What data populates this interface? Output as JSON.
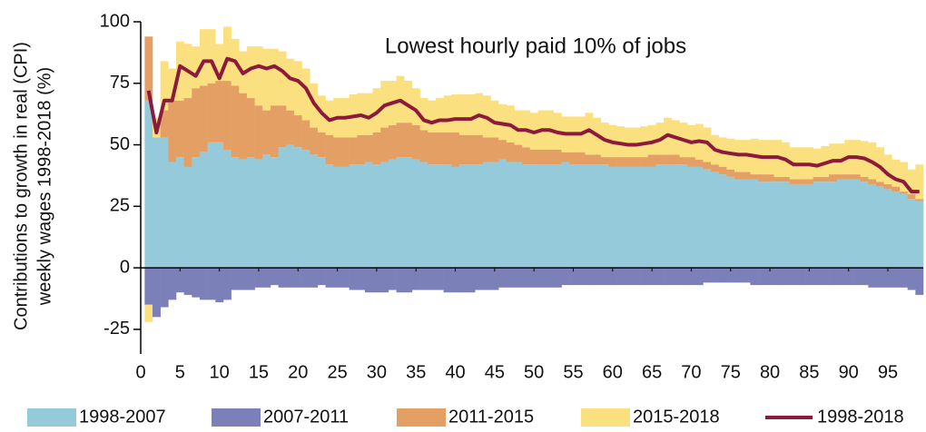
{
  "chart_data": {
    "type": "bar",
    "stacked": true,
    "annotation": "Lowest hourly paid 10% of jobs",
    "y_label": [
      "Contributions to growth in real (CPI)",
      "weekly wages 1998-2018 (%)"
    ],
    "x": [
      1,
      2,
      3,
      4,
      5,
      6,
      7,
      8,
      9,
      10,
      11,
      12,
      13,
      14,
      15,
      16,
      17,
      18,
      19,
      20,
      21,
      22,
      23,
      24,
      25,
      26,
      27,
      28,
      29,
      30,
      31,
      32,
      33,
      34,
      35,
      36,
      37,
      38,
      39,
      40,
      41,
      42,
      43,
      44,
      45,
      46,
      47,
      48,
      49,
      50,
      51,
      52,
      53,
      54,
      55,
      56,
      57,
      58,
      59,
      60,
      61,
      62,
      63,
      64,
      65,
      66,
      67,
      68,
      69,
      70,
      71,
      72,
      73,
      74,
      75,
      76,
      77,
      78,
      79,
      80,
      81,
      82,
      83,
      84,
      85,
      86,
      87,
      88,
      89,
      90,
      91,
      92,
      93,
      94,
      95,
      96,
      97,
      98,
      99
    ],
    "xlim": [
      0,
      99.5
    ],
    "xticks": [
      0,
      5,
      10,
      15,
      20,
      25,
      30,
      35,
      40,
      45,
      50,
      55,
      60,
      65,
      70,
      75,
      80,
      85,
      90,
      95
    ],
    "ylim": [
      -35,
      100
    ],
    "yticks": [
      -25,
      0,
      25,
      50,
      75,
      100
    ],
    "series": [
      {
        "name": "1998-2007",
        "color": "#94cad9",
        "values": [
          68,
          53,
          53,
          43,
          45,
          41,
          45,
          47,
          51,
          51,
          48,
          45,
          44,
          45,
          44,
          46,
          45,
          49,
          50,
          49,
          48,
          46,
          45,
          42,
          41,
          41,
          42,
          42,
          43,
          42,
          43,
          44,
          45,
          45,
          44,
          43,
          42,
          42,
          42,
          41,
          42,
          42,
          42,
          43,
          43,
          44,
          43,
          43,
          42,
          42,
          42,
          42,
          42,
          43,
          42,
          42,
          42,
          42,
          42,
          41,
          41,
          41,
          41,
          41,
          41,
          42,
          42,
          42,
          42,
          41,
          41,
          40,
          39,
          38,
          37,
          36,
          36,
          36,
          35,
          35,
          35,
          35,
          34,
          34,
          34,
          35,
          35,
          35,
          36,
          36,
          36,
          35,
          34,
          33,
          32,
          31,
          30,
          28,
          27
        ]
      },
      {
        "name": "2007-2011",
        "color": "#7c80b8",
        "values": [
          -15,
          -20,
          -16,
          -13,
          -10,
          -11,
          -12,
          -13,
          -13,
          -14,
          -13,
          -9,
          -9,
          -9,
          -8,
          -8,
          -7,
          -8,
          -8,
          -8,
          -8,
          -8,
          -7,
          -8,
          -8,
          -8,
          -9,
          -9,
          -10,
          -10,
          -10,
          -9,
          -10,
          -10,
          -9,
          -9,
          -9,
          -9,
          -10,
          -10,
          -10,
          -10,
          -9,
          -9,
          -9,
          -8,
          -8,
          -8,
          -8,
          -8,
          -8,
          -8,
          -8,
          -7,
          -7,
          -7,
          -7,
          -7,
          -7,
          -7,
          -7,
          -7,
          -7,
          -7,
          -7,
          -7,
          -7,
          -7,
          -7,
          -7,
          -7,
          -6,
          -6,
          -6,
          -6,
          -6,
          -6,
          -7,
          -7,
          -7,
          -7,
          -7,
          -7,
          -7,
          -7,
          -7,
          -7,
          -7,
          -7,
          -7,
          -7,
          -7,
          -8,
          -8,
          -8,
          -8,
          -8,
          -9,
          -11
        ]
      },
      {
        "name": "2011-2015",
        "color": "#e4a064",
        "values": [
          26,
          0,
          11,
          25,
          23,
          28,
          28,
          27,
          24,
          25,
          28,
          29,
          27,
          24,
          22,
          18,
          21,
          17,
          14,
          13,
          12,
          11,
          10,
          12,
          12,
          12,
          11,
          12,
          11,
          13,
          14,
          14,
          14,
          14,
          14,
          13,
          13,
          13,
          13,
          14,
          12,
          12,
          12,
          10,
          10,
          8,
          8,
          7,
          7,
          6,
          6,
          6,
          6,
          4,
          5,
          5,
          4,
          4,
          3,
          4,
          4,
          4,
          4,
          4,
          5,
          4,
          4,
          4,
          3,
          4,
          3,
          3,
          3,
          3,
          3,
          3,
          3,
          2,
          3,
          3,
          2,
          2,
          2,
          2,
          2,
          2,
          2,
          3,
          2,
          2,
          2,
          2,
          2,
          2,
          2,
          2,
          1,
          2,
          1
        ]
      },
      {
        "name": "2015-2018",
        "color": "#fbe07f",
        "values": [
          -7,
          8,
          20,
          13,
          24,
          22,
          17,
          23,
          22,
          15,
          22,
          19,
          17,
          21,
          24,
          25,
          23,
          22,
          21,
          22,
          21,
          18,
          15,
          14,
          16,
          16,
          17.5,
          17,
          17,
          18,
          19,
          18,
          19,
          17,
          15,
          13,
          13,
          14,
          15,
          15.5,
          16.5,
          16.5,
          17,
          17,
          15,
          14.5,
          15,
          14,
          15,
          15,
          16,
          16,
          15,
          14.5,
          14.5,
          14.5,
          17,
          15,
          14,
          13,
          12.5,
          12,
          12,
          12.5,
          12,
          13,
          15,
          14,
          14,
          13,
          14.5,
          14,
          12,
          12,
          12.5,
          13,
          13,
          14.5,
          14,
          14,
          15,
          14,
          13,
          13,
          13,
          11.5,
          12.5,
          12.5,
          12.5,
          14,
          14,
          14.5,
          15,
          14,
          12,
          11,
          12,
          10,
          14
        ]
      },
      {
        "name": "1998-2018",
        "color": "#8b1a3c",
        "type": "line",
        "values": [
          72,
          55,
          68,
          68,
          82,
          80,
          78,
          84,
          84,
          77,
          85,
          84,
          79,
          81,
          82,
          81,
          82,
          80,
          77,
          76,
          73,
          67,
          63,
          60,
          61,
          61,
          61.5,
          62,
          61,
          63,
          66,
          67,
          68,
          66,
          64,
          60,
          59,
          60,
          60,
          60.5,
          60.5,
          60.5,
          62,
          61,
          59,
          58.5,
          58,
          56,
          56,
          55,
          56,
          56,
          55,
          54.5,
          54.5,
          54.5,
          56,
          54,
          52,
          51,
          50.5,
          50,
          50,
          50.5,
          51,
          52,
          54,
          53,
          52,
          51,
          51.5,
          51,
          48,
          47,
          46.5,
          46,
          46,
          45.5,
          45,
          45,
          45,
          44,
          42,
          42,
          42,
          41.5,
          42.5,
          43.5,
          43.5,
          45,
          45,
          44.5,
          43,
          41,
          38,
          36,
          35,
          31,
          31
        ]
      }
    ]
  }
}
